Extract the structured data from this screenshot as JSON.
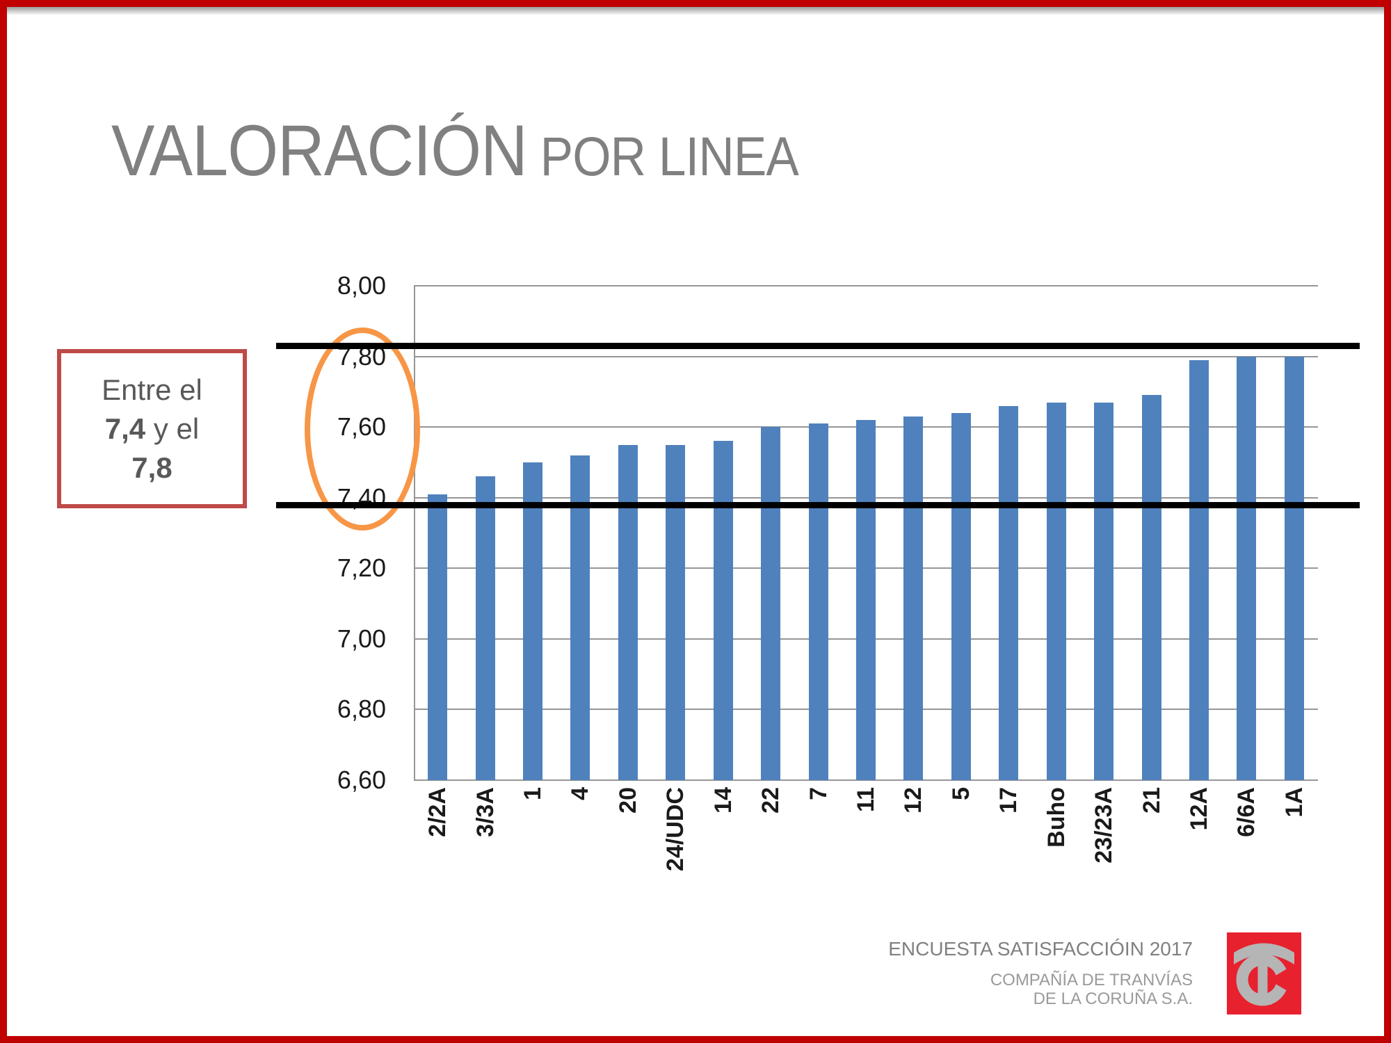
{
  "slide": {
    "title_main": "VALORACIÓN",
    "title_sub": " POR LINEA",
    "callout": {
      "part1": "Entre el",
      "part2_bold": "7,4",
      "part3": " y el",
      "part4_bold": "7,8"
    },
    "footer": {
      "survey": "ENCUESTA SATISFACCIÓIN 2017",
      "company_line1": "COMPAÑÍA DE TRANVÍAS",
      "company_line2": "DE LA CORUÑA S.A."
    },
    "logo_name": "compania-de-tranvias-tc-logo"
  },
  "colors": {
    "slide_border": "#C00000",
    "callout_border": "#BE4B48",
    "callout_text": "#595959",
    "title_gray": "#808080",
    "bar_blue": "#4F81BD",
    "gridline_gray": "#969696",
    "reference_line": "#000000",
    "highlight_orange": "#F79646",
    "logo_red": "#E8212E",
    "logo_gray": "#B5B5B5"
  },
  "chart_data": {
    "type": "bar",
    "title": "",
    "xlabel": "",
    "ylabel": "",
    "categories": [
      "2/2A",
      "3/3A",
      "1",
      "4",
      "20",
      "24/UDC",
      "14",
      "22",
      "7",
      "11",
      "12",
      "5",
      "17",
      "Buho",
      "23/23A",
      "21",
      "12A",
      "6/6A",
      "1A"
    ],
    "values": [
      7.41,
      7.46,
      7.5,
      7.52,
      7.55,
      7.55,
      7.56,
      7.6,
      7.61,
      7.62,
      7.63,
      7.64,
      7.66,
      7.67,
      7.67,
      7.69,
      7.79,
      7.8,
      7.8
    ],
    "ylim": [
      6.6,
      8.0
    ],
    "ytick_step": 0.2,
    "ytick_labels_top_down": [
      "8,00",
      "7,80",
      "7,60",
      "7,40",
      "7,20",
      "7,00",
      "6,80",
      "6,60"
    ],
    "grid": true,
    "legend": "none",
    "reference_lines": [
      7.83,
      7.38
    ],
    "highlight_range_annotation": [
      7.4,
      7.8
    ]
  }
}
